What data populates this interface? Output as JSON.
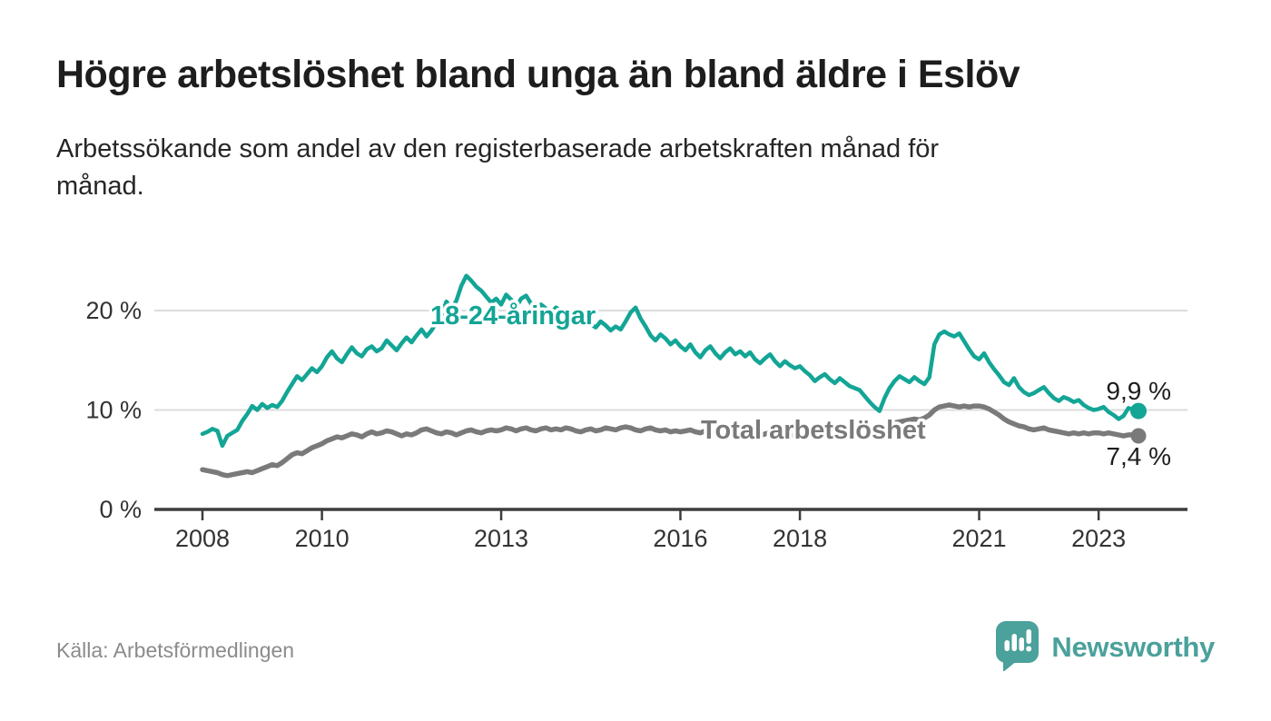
{
  "header": {
    "title": "Högre arbetslöshet bland unga än bland äldre i Eslöv",
    "subtitle": "Arbetssökande som andel av den registerbaserade arbetskraften månad för månad.",
    "subtitle_lines": [
      "Arbetssökande som andel av den registerbaserade arbetskraften månad för",
      "månad."
    ]
  },
  "footer": {
    "source": "Källa: Arbetsförmedlingen",
    "brand": "Newsworthy"
  },
  "colors": {
    "young_line": "#13A596",
    "total_line": "#7a7a7a",
    "grid": "#dcdcdc",
    "axis": "#3d3d3d",
    "tick_text": "#333333",
    "value_text": "#1d1d1d",
    "logo_teal": "#4BA19B",
    "source_text": "#8b8b8b"
  },
  "chart_data": {
    "type": "line",
    "x_start": "2008-01",
    "x_end": "2023-09",
    "interval": "monthly",
    "grid": "horizontal",
    "ylim": [
      0,
      24
    ],
    "yticks": [
      {
        "value": 0,
        "label": "0 %"
      },
      {
        "value": 10,
        "label": "10 %"
      },
      {
        "value": 20,
        "label": "20 %"
      }
    ],
    "xticks": [
      2008,
      2010,
      2013,
      2016,
      2018,
      2021,
      2023
    ],
    "series": [
      {
        "name": "18-24-åringar",
        "color": "#13A596",
        "end_label": "9,9 %",
        "last_value": 9.9,
        "values": [
          7.6,
          7.8,
          8.1,
          7.9,
          6.4,
          7.4,
          7.7,
          8.0,
          8.9,
          9.6,
          10.4,
          10.0,
          10.6,
          10.2,
          10.5,
          10.3,
          10.9,
          11.8,
          12.6,
          13.4,
          13.0,
          13.6,
          14.2,
          13.8,
          14.4,
          15.3,
          15.9,
          15.2,
          14.8,
          15.6,
          16.3,
          15.7,
          15.4,
          16.1,
          16.4,
          15.9,
          16.2,
          17.0,
          16.5,
          16.0,
          16.7,
          17.3,
          16.8,
          17.5,
          18.1,
          17.4,
          18.0,
          18.8,
          19.5,
          20.9,
          20.2,
          21.0,
          22.5,
          23.5,
          23.0,
          22.4,
          22.0,
          21.4,
          20.8,
          21.2,
          20.6,
          21.6,
          21.1,
          20.3,
          21.2,
          21.5,
          20.7,
          20.0,
          20.6,
          20.2,
          19.8,
          20.3,
          20.0,
          19.4,
          19.9,
          19.3,
          18.8,
          19.2,
          18.6,
          18.3,
          18.9,
          18.5,
          18.0,
          18.4,
          18.1,
          18.9,
          19.8,
          20.3,
          19.2,
          18.4,
          17.5,
          17.0,
          17.6,
          17.2,
          16.6,
          17.0,
          16.4,
          16.0,
          16.6,
          15.8,
          15.3,
          16.0,
          16.4,
          15.7,
          15.2,
          15.8,
          16.2,
          15.6,
          15.9,
          15.4,
          15.8,
          15.1,
          14.7,
          15.2,
          15.6,
          14.9,
          14.4,
          14.9,
          14.5,
          14.2,
          14.4,
          13.9,
          13.5,
          12.9,
          13.3,
          13.6,
          13.1,
          12.7,
          13.2,
          12.8,
          12.4,
          12.2,
          12.0,
          11.4,
          10.8,
          10.3,
          9.9,
          11.2,
          12.2,
          12.9,
          13.4,
          13.1,
          12.8,
          13.3,
          12.9,
          12.6,
          13.3,
          16.6,
          17.6,
          17.9,
          17.6,
          17.4,
          17.7,
          16.9,
          16.1,
          15.4,
          15.1,
          15.7,
          14.8,
          14.1,
          13.5,
          12.8,
          12.5,
          13.2,
          12.3,
          11.8,
          11.5,
          11.7,
          12.0,
          12.3,
          11.7,
          11.2,
          10.9,
          11.3,
          11.1,
          10.8,
          11.0,
          10.5,
          10.2,
          10.0,
          10.1,
          10.3,
          9.8,
          9.5,
          9.1,
          9.4,
          10.2,
          10.0,
          9.9
        ]
      },
      {
        "name": "Total arbetslöshet",
        "color": "#7a7a7a",
        "end_label": "7,4 %",
        "last_value": 7.4,
        "values": [
          4.0,
          3.9,
          3.8,
          3.7,
          3.5,
          3.4,
          3.5,
          3.6,
          3.7,
          3.8,
          3.7,
          3.9,
          4.1,
          4.3,
          4.5,
          4.4,
          4.7,
          5.1,
          5.5,
          5.7,
          5.6,
          5.9,
          6.2,
          6.4,
          6.6,
          6.9,
          7.1,
          7.3,
          7.2,
          7.4,
          7.6,
          7.5,
          7.3,
          7.6,
          7.8,
          7.6,
          7.7,
          7.9,
          7.8,
          7.6,
          7.4,
          7.6,
          7.5,
          7.7,
          8.0,
          8.1,
          7.9,
          7.7,
          7.6,
          7.8,
          7.7,
          7.5,
          7.7,
          7.9,
          8.0,
          7.8,
          7.7,
          7.9,
          8.0,
          7.9,
          8.0,
          8.2,
          8.1,
          7.9,
          8.1,
          8.2,
          8.0,
          7.9,
          8.1,
          8.2,
          8.0,
          8.1,
          8.0,
          8.2,
          8.1,
          7.9,
          7.8,
          8.0,
          8.1,
          7.9,
          8.0,
          8.2,
          8.1,
          8.0,
          8.2,
          8.3,
          8.2,
          8.0,
          7.9,
          8.1,
          8.2,
          8.0,
          7.9,
          8.0,
          7.8,
          7.9,
          7.8,
          7.9,
          8.0,
          7.8,
          7.7,
          7.9,
          8.0,
          7.8,
          7.7,
          7.8,
          7.7,
          7.8,
          7.7,
          7.8,
          7.7,
          7.5,
          7.4,
          7.6,
          7.7,
          7.5,
          7.4,
          7.5,
          7.4,
          7.5,
          7.6,
          7.5,
          7.4,
          7.3,
          7.4,
          7.5,
          7.4,
          7.3,
          7.5,
          7.6,
          7.5,
          7.6,
          7.7,
          7.8,
          7.9,
          8.0,
          8.2,
          8.4,
          8.6,
          8.7,
          8.8,
          8.9,
          9.0,
          9.1,
          9.0,
          9.2,
          9.5,
          10.0,
          10.3,
          10.4,
          10.5,
          10.4,
          10.3,
          10.4,
          10.3,
          10.4,
          10.4,
          10.3,
          10.1,
          9.8,
          9.5,
          9.1,
          8.8,
          8.6,
          8.4,
          8.3,
          8.1,
          8.0,
          8.1,
          8.2,
          8.0,
          7.9,
          7.8,
          7.7,
          7.6,
          7.7,
          7.6,
          7.7,
          7.6,
          7.7,
          7.7,
          7.6,
          7.7,
          7.6,
          7.5,
          7.4,
          7.5,
          7.5,
          7.4
        ]
      }
    ]
  }
}
